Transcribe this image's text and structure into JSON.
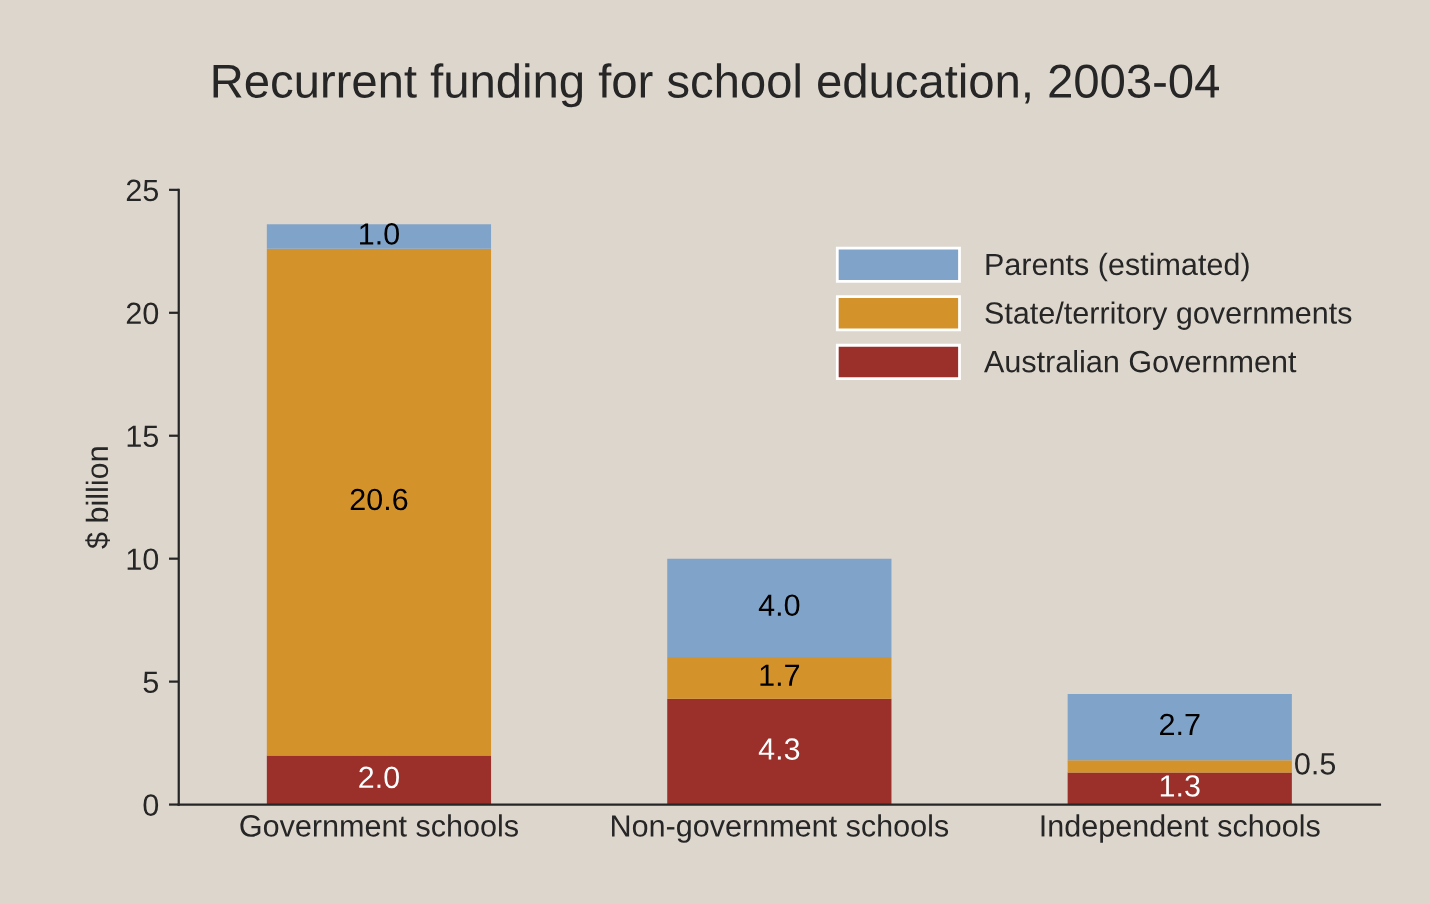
{
  "chart_data": {
    "type": "bar",
    "title": "Recurrent funding for school education, 2003-04",
    "ylabel": "$ billion",
    "categories": [
      "Government schools",
      "Non-government schools",
      "Independent schools"
    ],
    "stacked": true,
    "series": [
      {
        "name": "Australian Government",
        "color": "#9b2f2a",
        "values": [
          2.0,
          4.3,
          1.3
        ],
        "value_labels": [
          "2.0",
          "4.3",
          "1.3"
        ]
      },
      {
        "name": "State/territory governments",
        "color": "#d4922a",
        "values": [
          20.6,
          1.7,
          0.5
        ],
        "value_labels": [
          "20.6",
          "1.7",
          "0.5"
        ]
      },
      {
        "name": "Parents (estimated)",
        "color": "#80a4c9",
        "values": [
          1.0,
          4.0,
          2.7
        ],
        "value_labels": [
          "1.0",
          "4.0",
          "2.7"
        ]
      }
    ],
    "ylim": [
      0,
      25
    ],
    "yticks": [
      0,
      5,
      10,
      15,
      20,
      25
    ],
    "legend": "top right",
    "grid": false
  }
}
